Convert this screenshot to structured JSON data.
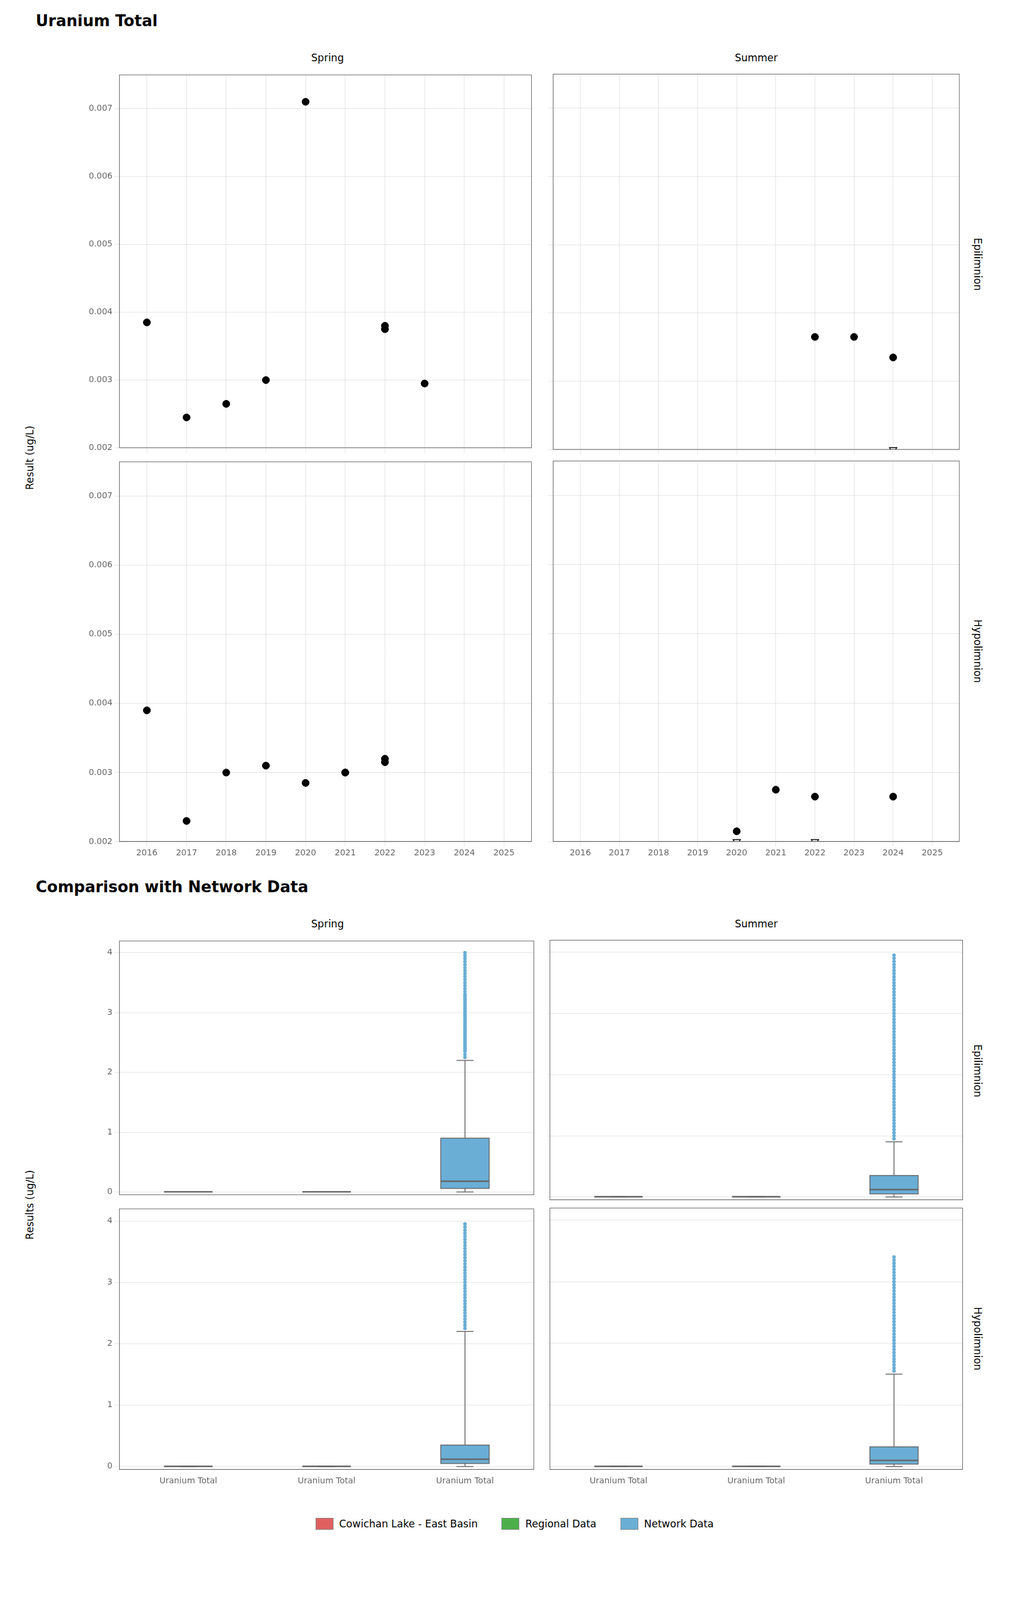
{
  "chart_data": [
    {
      "type": "scatter",
      "title": "Uranium Total",
      "ylabel": "Result (ug/L)",
      "subtitle": "Spring",
      "xlim": [
        2015.3,
        2025.7
      ],
      "xticks": [
        2016,
        2017,
        2018,
        2019,
        2020,
        2021,
        2022,
        2023,
        2024,
        2025
      ],
      "ylim": [
        0.002,
        0.0075
      ],
      "yticks": [
        0.002,
        0.003,
        0.004,
        0.005,
        0.006,
        0.007
      ],
      "grid": true,
      "tick_labels": "y",
      "series": [
        {
          "color": "#000000",
          "marker": "circle",
          "x": [
            2016,
            2017,
            2018,
            2019,
            2020,
            2022,
            2022,
            2023
          ],
          "values": [
            0.00385,
            0.00245,
            0.00265,
            0.003,
            0.0071,
            0.0038,
            0.00375,
            0.00295
          ]
        }
      ]
    },
    {
      "type": "scatter",
      "subtitle": "Summer",
      "annotations": [
        "Epilimnion"
      ],
      "xlim": [
        2015.3,
        2025.7
      ],
      "xticks": [
        2016,
        2017,
        2018,
        2019,
        2020,
        2021,
        2022,
        2023,
        2024,
        2025
      ],
      "ylim": [
        0.002,
        0.0075
      ],
      "yticks": [
        0.002,
        0.003,
        0.004,
        0.005,
        0.006,
        0.007
      ],
      "grid": true,
      "tick_labels": false,
      "series": [
        {
          "color": "#000000",
          "marker": "circle",
          "x": [
            2022,
            2023,
            2024
          ],
          "values": [
            0.00365,
            0.00365,
            0.00335
          ]
        },
        {
          "color": "#000000",
          "marker": "triangle_down_open",
          "x": [
            2024
          ],
          "values": [
            0.002
          ]
        }
      ]
    },
    {
      "type": "scatter",
      "xlim": [
        2015.3,
        2025.7
      ],
      "xticks": [
        2016,
        2017,
        2018,
        2019,
        2020,
        2021,
        2022,
        2023,
        2024,
        2025
      ],
      "ylim": [
        0.002,
        0.0075
      ],
      "yticks": [
        0.002,
        0.003,
        0.004,
        0.005,
        0.006,
        0.007
      ],
      "grid": true,
      "tick_labels": true,
      "series": [
        {
          "color": "#000000",
          "marker": "circle",
          "x": [
            2016,
            2017,
            2018,
            2019,
            2020,
            2021,
            2021,
            2022,
            2022
          ],
          "values": [
            0.0039,
            0.0023,
            0.003,
            0.0031,
            0.00285,
            0.003,
            0.003,
            0.00315,
            0.0032
          ]
        }
      ]
    },
    {
      "type": "scatter",
      "annotations": [
        "Hypolimnion"
      ],
      "xlim": [
        2015.3,
        2025.7
      ],
      "xticks": [
        2016,
        2017,
        2018,
        2019,
        2020,
        2021,
        2022,
        2023,
        2024,
        2025
      ],
      "ylim": [
        0.002,
        0.0075
      ],
      "yticks": [
        0.002,
        0.003,
        0.004,
        0.005,
        0.006,
        0.007
      ],
      "grid": true,
      "tick_labels": "x",
      "series": [
        {
          "color": "#000000",
          "marker": "circle",
          "x": [
            2020,
            2021,
            2022,
            2024
          ],
          "values": [
            0.00215,
            0.00275,
            0.00265,
            0.00265
          ]
        },
        {
          "color": "#000000",
          "marker": "triangle_down_open",
          "x": [
            2020,
            2022
          ],
          "values": [
            0.002,
            0.002
          ]
        }
      ]
    },
    {
      "type": "box",
      "title": "Comparison with Network Data",
      "ylabel": "Results (ug/L)",
      "subtitle": "Spring",
      "categories": [
        null,
        null,
        null
      ],
      "ylim": [
        -0.05,
        4.2
      ],
      "yticks": [
        0,
        1,
        2,
        3,
        4
      ],
      "grid": "y",
      "tick_labels": "y",
      "series": [
        {
          "name": "Cowichan Lake - East Basin",
          "color": "#e06060",
          "values": [
            {
              "median": 0.003,
              "q1": 0.003,
              "q3": 0.003,
              "whislo": 0.002,
              "whishi": 0.004
            },
            null,
            null
          ]
        },
        {
          "name": "Regional Data",
          "color": "#4daf4a",
          "values": [
            null,
            {
              "median": 0.003,
              "q1": 0.003,
              "q3": 0.003,
              "whislo": 0.002,
              "whishi": 0.004
            },
            null
          ]
        },
        {
          "name": "Network Data",
          "color": "#6aaed6",
          "values": [
            null,
            null,
            {
              "median": 0.18,
              "q1": 0.06,
              "q3": 0.9,
              "whislo": 0.0,
              "whishi": 2.2,
              "fliers": [
                2.25,
                2.3,
                2.35,
                2.38,
                2.4,
                2.42,
                2.45,
                2.47,
                2.5,
                2.52,
                2.55,
                2.57,
                2.6,
                2.62,
                2.65,
                2.68,
                2.7,
                2.72,
                2.75,
                2.77,
                2.8,
                2.82,
                2.85,
                2.88,
                2.9,
                2.92,
                2.95,
                2.97,
                3.0,
                3.02,
                3.05,
                3.07,
                3.1,
                3.12,
                3.15,
                3.18,
                3.2,
                3.22,
                3.25,
                3.28,
                3.3,
                3.35,
                3.4,
                3.45,
                3.5,
                3.55,
                3.6,
                3.65,
                3.7,
                3.75,
                3.8,
                3.85,
                3.9,
                3.95,
                4.0
              ]
            }
          ]
        }
      ]
    },
    {
      "type": "box",
      "subtitle": "Summer",
      "annotations": [
        "Epilimnion"
      ],
      "categories": [
        null,
        null,
        null
      ],
      "ylim": [
        -0.05,
        4.2
      ],
      "yticks": [
        0,
        1,
        2,
        3,
        4
      ],
      "grid": "y",
      "tick_labels": false,
      "series": [
        {
          "name": "Cowichan Lake - East Basin",
          "color": "#e06060",
          "values": [
            {
              "median": 0.003,
              "q1": 0.003,
              "q3": 0.003,
              "whislo": 0.002,
              "whishi": 0.004
            },
            null,
            null
          ]
        },
        {
          "name": "Regional Data",
          "color": "#4daf4a",
          "values": [
            null,
            {
              "median": 0.003,
              "q1": 0.003,
              "q3": 0.003,
              "whislo": 0.002,
              "whishi": 0.004
            },
            null
          ]
        },
        {
          "name": "Network Data",
          "color": "#6aaed6",
          "values": [
            null,
            null,
            {
              "median": 0.12,
              "q1": 0.05,
              "q3": 0.35,
              "whislo": 0.0,
              "whishi": 0.9,
              "fliers": [
                0.95,
                1.0,
                1.05,
                1.1,
                1.15,
                1.2,
                1.25,
                1.3,
                1.35,
                1.4,
                1.45,
                1.5,
                1.55,
                1.6,
                1.65,
                1.7,
                1.75,
                1.8,
                1.85,
                1.9,
                1.95,
                2.0,
                2.05,
                2.1,
                2.15,
                2.2,
                2.25,
                2.3,
                2.35,
                2.4,
                2.45,
                2.5,
                2.55,
                2.6,
                2.65,
                2.7,
                2.75,
                2.8,
                2.85,
                2.9,
                2.95,
                3.0,
                3.05,
                3.1,
                3.15,
                3.2,
                3.25,
                3.3,
                3.35,
                3.4,
                3.45,
                3.5,
                3.55,
                3.6,
                3.65,
                3.7,
                3.75,
                3.8,
                3.85,
                3.9,
                3.95
              ]
            }
          ]
        }
      ]
    },
    {
      "type": "box",
      "categories": [
        "Uranium Total",
        "Uranium Total",
        "Uranium Total"
      ],
      "ylim": [
        -0.05,
        4.2
      ],
      "yticks": [
        0,
        1,
        2,
        3,
        4
      ],
      "grid": "y",
      "tick_labels": true,
      "series": [
        {
          "name": "Cowichan Lake - East Basin",
          "color": "#e06060",
          "values": [
            {
              "median": 0.003,
              "q1": 0.003,
              "q3": 0.003,
              "whislo": 0.002,
              "whishi": 0.004
            },
            null,
            null
          ]
        },
        {
          "name": "Regional Data",
          "color": "#4daf4a",
          "values": [
            null,
            {
              "median": 0.003,
              "q1": 0.003,
              "q3": 0.003,
              "whislo": 0.002,
              "whishi": 0.004
            },
            null
          ]
        },
        {
          "name": "Network Data",
          "color": "#6aaed6",
          "values": [
            null,
            null,
            {
              "median": 0.12,
              "q1": 0.05,
              "q3": 0.35,
              "whislo": 0.0,
              "whishi": 2.2,
              "fliers": [
                2.25,
                2.3,
                2.35,
                2.4,
                2.45,
                2.5,
                2.55,
                2.6,
                2.65,
                2.7,
                2.75,
                2.8,
                2.85,
                2.9,
                2.95,
                3.0,
                3.05,
                3.1,
                3.15,
                3.2,
                3.25,
                3.3,
                3.35,
                3.4,
                3.45,
                3.5,
                3.55,
                3.6,
                3.65,
                3.7,
                3.75,
                3.8,
                3.85,
                3.9,
                3.95
              ]
            }
          ]
        }
      ]
    },
    {
      "type": "box",
      "annotations": [
        "Hypolimnion"
      ],
      "legend": "bottom",
      "categories": [
        "Uranium Total",
        "Uranium Total",
        "Uranium Total"
      ],
      "ylim": [
        -0.05,
        4.2
      ],
      "yticks": [
        0,
        1,
        2,
        3,
        4
      ],
      "grid": "y",
      "tick_labels": "x",
      "series": [
        {
          "name": "Cowichan Lake - East Basin",
          "color": "#e06060",
          "values": [
            {
              "median": 0.003,
              "q1": 0.003,
              "q3": 0.003,
              "whislo": 0.002,
              "whishi": 0.004
            },
            null,
            null
          ]
        },
        {
          "name": "Regional Data",
          "color": "#4daf4a",
          "values": [
            null,
            {
              "median": 0.003,
              "q1": 0.003,
              "q3": 0.003,
              "whislo": 0.002,
              "whishi": 0.004
            },
            null
          ]
        },
        {
          "name": "Network Data",
          "color": "#6aaed6",
          "values": [
            null,
            null,
            {
              "median": 0.1,
              "q1": 0.04,
              "q3": 0.32,
              "whislo": 0.0,
              "whishi": 1.5,
              "fliers": [
                1.55,
                1.6,
                1.65,
                1.7,
                1.75,
                1.8,
                1.85,
                1.9,
                1.95,
                2.0,
                2.05,
                2.1,
                2.15,
                2.2,
                2.25,
                2.3,
                2.35,
                2.4,
                2.45,
                2.5,
                2.55,
                2.6,
                2.65,
                2.7,
                2.75,
                2.8,
                2.85,
                2.9,
                2.95,
                3.0,
                3.05,
                3.1,
                3.15,
                3.2,
                3.25,
                3.3,
                3.35,
                3.4
              ]
            }
          ]
        }
      ]
    }
  ]
}
